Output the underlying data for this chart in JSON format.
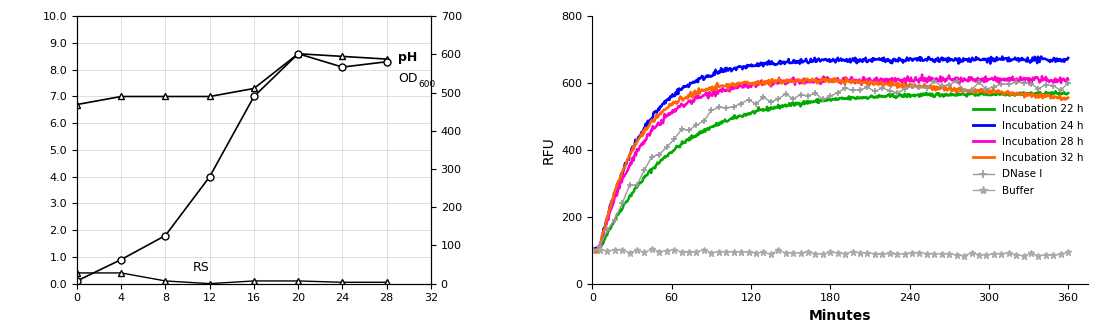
{
  "left": {
    "x_ph": [
      0,
      4,
      8,
      12,
      16,
      20,
      24,
      28
    ],
    "y_ph": [
      6.7,
      7.0,
      7.0,
      7.0,
      7.3,
      8.6,
      8.5,
      8.4
    ],
    "x_od": [
      0,
      4,
      8,
      12,
      16,
      20,
      24,
      28
    ],
    "y_od": [
      0.1,
      0.9,
      1.8,
      4.0,
      7.0,
      8.6,
      8.1,
      8.3
    ],
    "x_rs": [
      0,
      4,
      8,
      12,
      16,
      20,
      24,
      28
    ],
    "y_rs": [
      0.4,
      0.4,
      0.1,
      0.0,
      0.1,
      0.1,
      0.05,
      0.05
    ],
    "xlim": [
      0,
      32
    ],
    "xticks": [
      0,
      4,
      8,
      12,
      16,
      20,
      24,
      28,
      32
    ],
    "ylim_left": [
      0,
      10
    ],
    "yticks_left": [
      0.0,
      1.0,
      2.0,
      3.0,
      4.0,
      5.0,
      6.0,
      7.0,
      8.0,
      9.0,
      10.0
    ],
    "ylim_right": [
      0,
      700
    ],
    "yticks_right": [
      0,
      100,
      200,
      300,
      400,
      500,
      600,
      700
    ],
    "ph_label": "pH",
    "od_main": "OD",
    "od_sub": "600",
    "rs_label": "RS"
  },
  "right": {
    "incub22_color": "#00aa00",
    "incub24_color": "#0000ff",
    "incub28_color": "#ff00cc",
    "incub32_color": "#ff6600",
    "dnase_color": "#999999",
    "buffer_color": "#aaaaaa",
    "xlabel": "Minutes",
    "ylabel": "RFU",
    "xlim": [
      0,
      375
    ],
    "xticks": [
      0,
      60,
      120,
      180,
      240,
      300,
      360
    ],
    "ylim": [
      0,
      800
    ],
    "yticks": [
      0,
      200,
      400,
      600,
      800
    ],
    "legend": [
      "Incubation 22 h",
      "Incubation 24 h",
      "Incubation 28 h",
      "Incubation 32 h",
      "DNase I",
      "Buffer"
    ]
  }
}
